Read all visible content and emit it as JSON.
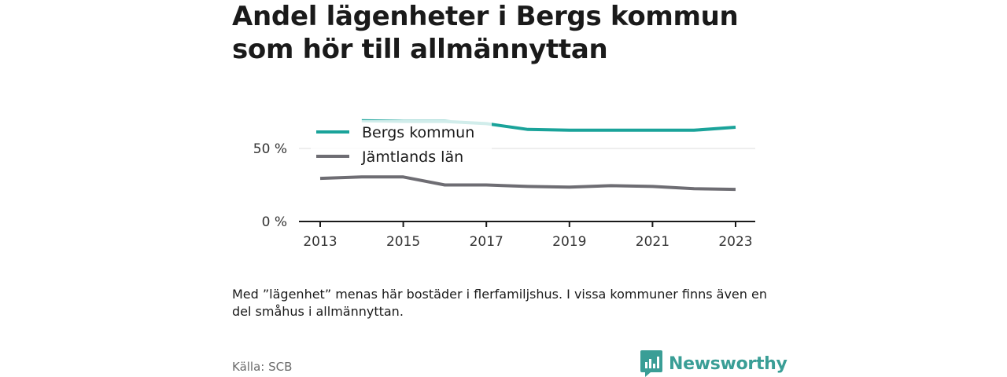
{
  "title": "Andel lägenheter i Bergs kommun som hör till allmännyttan",
  "note": "Med ”lägenhet” menas här bostäder i flerfamiljshus. I vissa kommuner finns även en del småhus i allmännyttan.",
  "source": "Källa: SCB",
  "brand": {
    "name": "Newsworthy",
    "icon": "newsworthy-logo-icon",
    "color": "#3a9e96"
  },
  "chart_data": {
    "type": "line",
    "x": [
      2013,
      2014,
      2015,
      2016,
      2017,
      2018,
      2019,
      2020,
      2021,
      2022,
      2023
    ],
    "series": [
      {
        "name": "Bergs kommun",
        "color": "#1aa39a",
        "values": [
          null,
          69,
          68.5,
          68.5,
          67,
          63,
          62.5,
          62.5,
          62.5,
          62.5,
          64.5
        ]
      },
      {
        "name": "Jämtlands län",
        "color": "#6e6d73",
        "values": [
          29.5,
          30.5,
          30.5,
          25,
          25,
          24,
          23.5,
          24.5,
          24,
          22.5,
          22
        ]
      }
    ],
    "yticks": [
      "0 %",
      "50 %"
    ],
    "ytick_values": [
      0,
      50
    ],
    "xticks": [
      "2013",
      "2015",
      "2017",
      "2019",
      "2021",
      "2023"
    ],
    "ylim": [
      0,
      100
    ],
    "grid": "horizontal",
    "legend_position": "top-left inside plot"
  }
}
